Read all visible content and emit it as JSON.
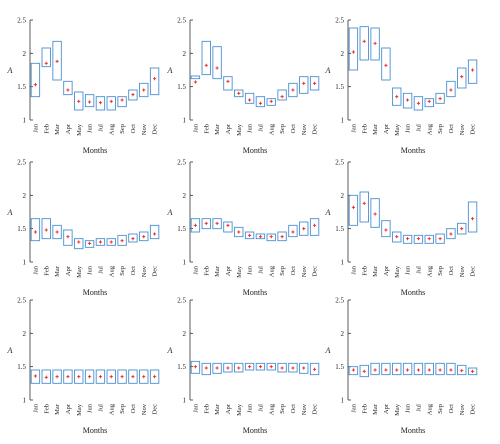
{
  "figure": {
    "title": ""
  },
  "style": {
    "box_color": "#4a8fd1",
    "mean_color": "#e8251f",
    "axis_color": "#333333"
  },
  "chart_data": [
    {
      "type": "box",
      "xlabel": "Months",
      "ylabel": "A",
      "ylim": [
        1,
        2.5
      ],
      "yticks": [
        "1",
        "1.5",
        "2",
        "2.5"
      ],
      "categories": [
        "Jan",
        "Feb",
        "Mar",
        "Apr",
        "May",
        "Jun",
        "Jul",
        "Aug",
        "Sep",
        "Oct",
        "Nov",
        "Dec"
      ],
      "boxes": [
        [
          1.35,
          1.85
        ],
        [
          1.8,
          2.08
        ],
        [
          1.6,
          2.18
        ],
        [
          1.38,
          1.58
        ],
        [
          1.15,
          1.42
        ],
        [
          1.2,
          1.38
        ],
        [
          1.15,
          1.35
        ],
        [
          1.15,
          1.35
        ],
        [
          1.2,
          1.35
        ],
        [
          1.3,
          1.45
        ],
        [
          1.35,
          1.55
        ],
        [
          1.38,
          1.78
        ]
      ],
      "means": [
        1.53,
        1.85,
        1.88,
        1.45,
        1.28,
        1.27,
        1.26,
        1.28,
        1.3,
        1.38,
        1.45,
        1.62
      ]
    },
    {
      "type": "box",
      "xlabel": "Months",
      "ylabel": "A",
      "ylim": [
        1,
        2.5
      ],
      "yticks": [
        "1",
        "1.5",
        "2",
        "2.5"
      ],
      "categories": [
        "Jan",
        "Feb",
        "Mar",
        "Apr",
        "May",
        "Jun",
        "Jul",
        "Aug",
        "Sep",
        "Oct",
        "Nov",
        "Dec"
      ],
      "boxes": [
        [
          1.62,
          1.66
        ],
        [
          1.68,
          2.18
        ],
        [
          1.62,
          2.1
        ],
        [
          1.45,
          1.65
        ],
        [
          1.35,
          1.45
        ],
        [
          1.25,
          1.4
        ],
        [
          1.2,
          1.35
        ],
        [
          1.22,
          1.32
        ],
        [
          1.3,
          1.45
        ],
        [
          1.35,
          1.55
        ],
        [
          1.4,
          1.65
        ],
        [
          1.45,
          1.65
        ]
      ],
      "means": [
        1.57,
        1.82,
        1.78,
        1.58,
        1.4,
        1.3,
        1.25,
        1.28,
        1.35,
        1.45,
        1.55,
        1.55
      ]
    },
    {
      "type": "box",
      "xlabel": "Months",
      "ylabel": "A",
      "ylim": [
        1,
        2.5
      ],
      "yticks": [
        "1",
        "1.5",
        "2",
        "2.5"
      ],
      "categories": [
        "Jan",
        "Feb",
        "Mar",
        "Apr",
        "May",
        "Jun",
        "Jul",
        "Aug",
        "Sep",
        "Oct",
        "Nov",
        "Dec"
      ],
      "boxes": [
        [
          1.75,
          2.38
        ],
        [
          1.9,
          2.4
        ],
        [
          1.9,
          2.38
        ],
        [
          1.6,
          2.08
        ],
        [
          1.22,
          1.48
        ],
        [
          1.18,
          1.4
        ],
        [
          1.15,
          1.35
        ],
        [
          1.2,
          1.32
        ],
        [
          1.25,
          1.4
        ],
        [
          1.35,
          1.58
        ],
        [
          1.48,
          1.78
        ],
        [
          1.55,
          1.9
        ]
      ],
      "means": [
        2.02,
        2.18,
        2.15,
        1.82,
        1.35,
        1.3,
        1.25,
        1.28,
        1.32,
        1.45,
        1.65,
        1.75
      ]
    },
    {
      "type": "box",
      "xlabel": "Months",
      "ylabel": "A",
      "ylim": [
        1,
        2.5
      ],
      "yticks": [
        "1",
        "1.5",
        "2",
        "2.5"
      ],
      "categories": [
        "Jan",
        "Feb",
        "Mar",
        "Apr",
        "May",
        "Jun",
        "Jul",
        "Aug",
        "Sep",
        "Oct",
        "Nov",
        "Dec"
      ],
      "boxes": [
        [
          1.32,
          1.65
        ],
        [
          1.35,
          1.65
        ],
        [
          1.35,
          1.55
        ],
        [
          1.25,
          1.48
        ],
        [
          1.2,
          1.35
        ],
        [
          1.22,
          1.32
        ],
        [
          1.25,
          1.35
        ],
        [
          1.25,
          1.35
        ],
        [
          1.25,
          1.4
        ],
        [
          1.3,
          1.42
        ],
        [
          1.32,
          1.45
        ],
        [
          1.35,
          1.55
        ]
      ],
      "means": [
        1.45,
        1.48,
        1.45,
        1.38,
        1.3,
        1.28,
        1.3,
        1.3,
        1.32,
        1.35,
        1.38,
        1.42
      ]
    },
    {
      "type": "box",
      "xlabel": "Months",
      "ylabel": "A",
      "ylim": [
        1,
        2.5
      ],
      "yticks": [
        "1",
        "1.5",
        "2",
        "2.5"
      ],
      "categories": [
        "Jan",
        "Feb",
        "Mar",
        "Apr",
        "May",
        "Jun",
        "Jul",
        "Aug",
        "Sep",
        "Oct",
        "Nov",
        "Dec"
      ],
      "boxes": [
        [
          1.45,
          1.65
        ],
        [
          1.5,
          1.65
        ],
        [
          1.5,
          1.65
        ],
        [
          1.45,
          1.6
        ],
        [
          1.38,
          1.52
        ],
        [
          1.35,
          1.45
        ],
        [
          1.35,
          1.42
        ],
        [
          1.32,
          1.42
        ],
        [
          1.32,
          1.45
        ],
        [
          1.38,
          1.55
        ],
        [
          1.4,
          1.6
        ],
        [
          1.4,
          1.65
        ]
      ],
      "means": [
        1.55,
        1.58,
        1.58,
        1.55,
        1.45,
        1.4,
        1.38,
        1.38,
        1.38,
        1.45,
        1.5,
        1.55
      ]
    },
    {
      "type": "box",
      "xlabel": "Months",
      "ylabel": "A",
      "ylim": [
        1,
        2.5
      ],
      "yticks": [
        "1",
        "1.5",
        "2",
        "2.5"
      ],
      "categories": [
        "Jan",
        "Feb",
        "Mar",
        "Apr",
        "May",
        "Jun",
        "Jul",
        "Aug",
        "Sep",
        "Oct",
        "Nov",
        "Dec"
      ],
      "boxes": [
        [
          1.55,
          2.0
        ],
        [
          1.6,
          2.05
        ],
        [
          1.52,
          1.95
        ],
        [
          1.38,
          1.62
        ],
        [
          1.3,
          1.45
        ],
        [
          1.28,
          1.4
        ],
        [
          1.28,
          1.4
        ],
        [
          1.28,
          1.4
        ],
        [
          1.28,
          1.42
        ],
        [
          1.35,
          1.5
        ],
        [
          1.42,
          1.58
        ],
        [
          1.45,
          1.9
        ]
      ],
      "means": [
        1.82,
        1.88,
        1.72,
        1.48,
        1.38,
        1.35,
        1.35,
        1.35,
        1.35,
        1.42,
        1.5,
        1.65
      ]
    },
    {
      "type": "box",
      "xlabel": "Months",
      "ylabel": "A",
      "ylim": [
        1,
        2.5
      ],
      "yticks": [
        "1",
        "1.5",
        "2",
        "2.5"
      ],
      "categories": [
        "Jan",
        "Feb",
        "Mar",
        "Apr",
        "May",
        "Jun",
        "Jul",
        "Aug",
        "Sep",
        "Oct",
        "Nov",
        "Dec"
      ],
      "boxes": [
        [
          1.25,
          1.45
        ],
        [
          1.25,
          1.45
        ],
        [
          1.25,
          1.45
        ],
        [
          1.25,
          1.45
        ],
        [
          1.25,
          1.45
        ],
        [
          1.25,
          1.45
        ],
        [
          1.25,
          1.45
        ],
        [
          1.25,
          1.45
        ],
        [
          1.25,
          1.45
        ],
        [
          1.25,
          1.45
        ],
        [
          1.25,
          1.45
        ],
        [
          1.25,
          1.45
        ]
      ],
      "means": [
        1.36,
        1.34,
        1.35,
        1.35,
        1.35,
        1.35,
        1.35,
        1.35,
        1.35,
        1.35,
        1.35,
        1.35
      ]
    },
    {
      "type": "box",
      "xlabel": "Months",
      "ylabel": "A",
      "ylim": [
        1,
        2.5
      ],
      "yticks": [
        "1",
        "1.5",
        "2",
        "2.5"
      ],
      "categories": [
        "Jan",
        "Feb",
        "Mar",
        "Apr",
        "May",
        "Jun",
        "Jul",
        "Aug",
        "Sep",
        "Oct",
        "Nov",
        "Dec"
      ],
      "boxes": [
        [
          1.4,
          1.58
        ],
        [
          1.38,
          1.55
        ],
        [
          1.4,
          1.55
        ],
        [
          1.42,
          1.55
        ],
        [
          1.42,
          1.55
        ],
        [
          1.45,
          1.55
        ],
        [
          1.45,
          1.55
        ],
        [
          1.45,
          1.55
        ],
        [
          1.42,
          1.55
        ],
        [
          1.42,
          1.55
        ],
        [
          1.4,
          1.55
        ],
        [
          1.38,
          1.55
        ]
      ],
      "means": [
        1.5,
        1.48,
        1.48,
        1.48,
        1.48,
        1.5,
        1.5,
        1.5,
        1.48,
        1.48,
        1.48,
        1.46
      ]
    },
    {
      "type": "box",
      "xlabel": "Months",
      "ylabel": "A",
      "ylim": [
        1,
        2.5
      ],
      "yticks": [
        "1",
        "1.5",
        "2",
        "2.5"
      ],
      "categories": [
        "Jan",
        "Feb",
        "Mar",
        "Apr",
        "May",
        "Jun",
        "Jul",
        "Aug",
        "Sep",
        "Oct",
        "Nov",
        "Dec"
      ],
      "boxes": [
        [
          1.38,
          1.5
        ],
        [
          1.35,
          1.52
        ],
        [
          1.38,
          1.55
        ],
        [
          1.38,
          1.55
        ],
        [
          1.38,
          1.55
        ],
        [
          1.38,
          1.55
        ],
        [
          1.38,
          1.55
        ],
        [
          1.38,
          1.55
        ],
        [
          1.38,
          1.55
        ],
        [
          1.38,
          1.55
        ],
        [
          1.38,
          1.52
        ],
        [
          1.38,
          1.48
        ]
      ],
      "means": [
        1.45,
        1.43,
        1.45,
        1.45,
        1.45,
        1.45,
        1.45,
        1.45,
        1.45,
        1.45,
        1.44,
        1.43
      ]
    }
  ]
}
